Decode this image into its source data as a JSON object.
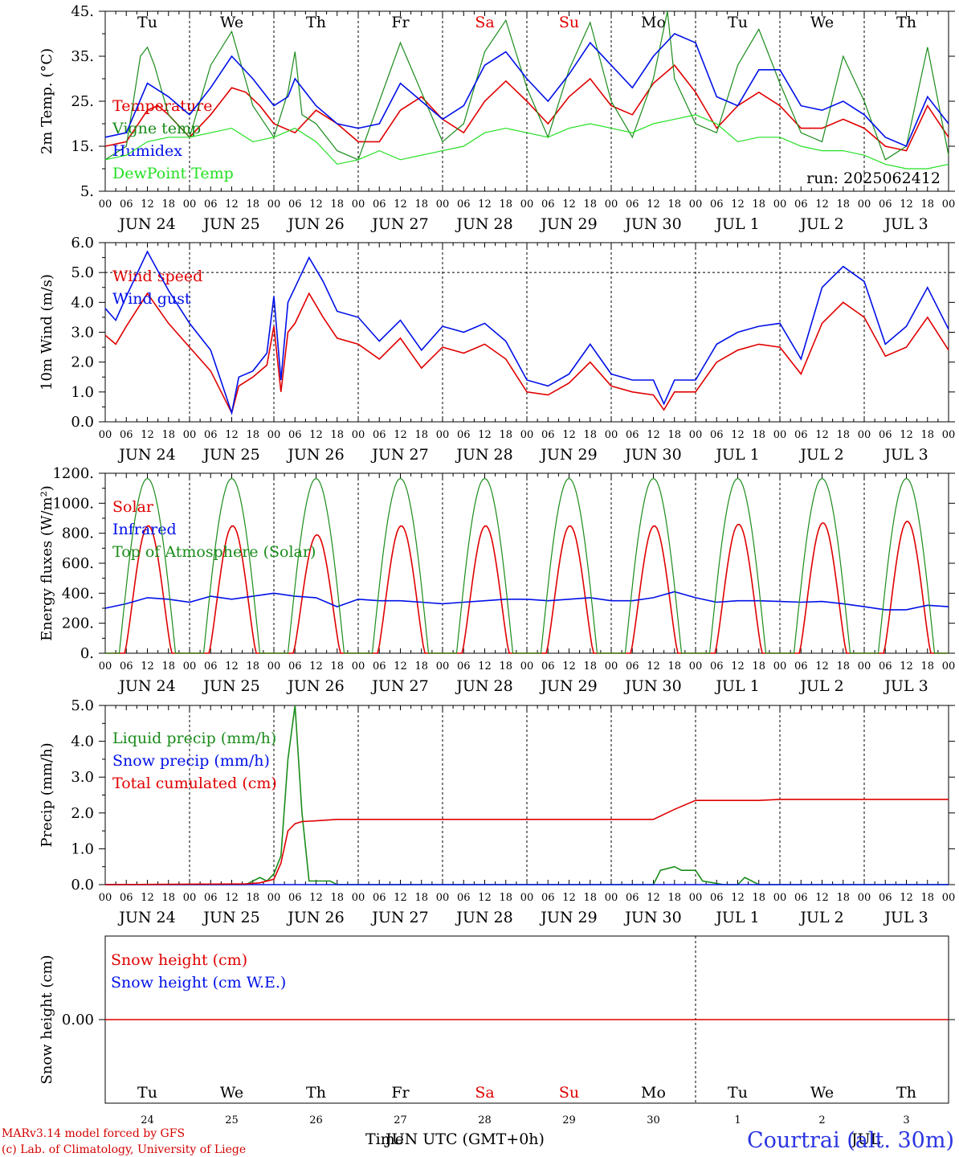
{
  "colors": {
    "red": "#e00000",
    "blue": "#0010e8",
    "darkgreen": "#1a8c1a",
    "lightgreen": "#22e022",
    "weekend": "#e00000",
    "location": "#2b35e0"
  },
  "days": {
    "weekday_labels": [
      "Tu",
      "We",
      "Th",
      "Fr",
      "Sa",
      "Su",
      "Mo",
      "Tu",
      "We",
      "Th"
    ],
    "weekend_index": [
      4,
      5
    ],
    "date_labels": [
      "JUN 24",
      "JUN 25",
      "JUN 26",
      "JUN 27",
      "JUN 28",
      "JUN 29",
      "JUN 30",
      "JUL  1",
      "JUL  2",
      "JUL  3"
    ],
    "hour_labels": [
      "00",
      "06",
      "12",
      "18"
    ],
    "end_hour_label": "00",
    "bottom_day_numbers": [
      "24",
      "25",
      "26",
      "27",
      "28",
      "29",
      "30",
      "1",
      "2",
      "3"
    ]
  },
  "chart_data": [
    {
      "type": "line",
      "ylabel": "2m Temp. (°C)",
      "ylim": [
        5,
        45
      ],
      "yticks": [
        "5.",
        "15.",
        "25.",
        "35.",
        "45."
      ],
      "x_unit": "hours from 2025-06-24 00 UTC",
      "annotation": "run: 2025062412",
      "series": [
        {
          "name": "Temperature",
          "color": "red",
          "x": [
            0,
            6,
            12,
            15,
            18,
            24,
            30,
            36,
            40,
            44,
            48,
            54,
            60,
            66,
            72,
            78,
            84,
            90,
            96,
            102,
            108,
            114,
            120,
            126,
            132,
            138,
            144,
            150,
            156,
            162,
            168,
            174,
            180,
            186,
            192,
            198,
            204,
            210,
            216,
            222,
            228,
            234,
            240
          ],
          "y": [
            15,
            16,
            23,
            24,
            22,
            17,
            22,
            28,
            27,
            24,
            20,
            18,
            23,
            20,
            16,
            16,
            23,
            26,
            21,
            18,
            25,
            29.5,
            25,
            20,
            26,
            30,
            24,
            22,
            29,
            33,
            27,
            19,
            24,
            27,
            24,
            19,
            19,
            21,
            19,
            15,
            14,
            24,
            17
          ]
        },
        {
          "name": "Vigne temp",
          "color": "darkgreen",
          "x": [
            0,
            6,
            10,
            12,
            14,
            18,
            24,
            30,
            36,
            42,
            48,
            52,
            54,
            56,
            60,
            66,
            72,
            78,
            84,
            90,
            96,
            102,
            108,
            114,
            120,
            126,
            132,
            138,
            144,
            150,
            156,
            160,
            162,
            168,
            174,
            180,
            186,
            192,
            198,
            204,
            210,
            216,
            222,
            228,
            234,
            240
          ],
          "y": [
            12,
            15,
            35,
            37,
            33,
            22,
            17,
            33,
            40.5,
            24,
            17,
            27,
            36,
            22,
            20,
            14,
            12,
            25,
            38,
            27,
            16,
            20,
            36,
            43,
            28,
            17,
            32,
            42.5,
            25,
            17,
            30,
            45,
            30,
            20,
            18,
            33,
            41,
            29,
            18,
            16,
            35,
            25,
            12,
            15,
            37,
            13
          ]
        },
        {
          "name": "Humidex",
          "color": "blue",
          "x": [
            0,
            6,
            12,
            18,
            24,
            30,
            36,
            42,
            48,
            52,
            54,
            60,
            66,
            72,
            78,
            84,
            90,
            96,
            102,
            108,
            114,
            120,
            126,
            132,
            138,
            144,
            150,
            156,
            162,
            168,
            174,
            180,
            186,
            192,
            198,
            204,
            210,
            216,
            222,
            228,
            234,
            240
          ],
          "y": [
            17,
            18,
            29,
            26,
            22,
            28,
            35,
            30,
            24,
            26,
            30,
            24,
            20,
            19,
            20,
            29,
            25,
            21,
            24,
            33,
            36,
            30,
            25,
            31,
            38,
            33,
            28,
            35,
            40,
            38,
            26,
            24,
            32,
            32,
            24,
            23,
            25,
            22,
            17,
            15,
            26,
            20
          ]
        },
        {
          "name": "DewPoint Temp",
          "color": "lightgreen",
          "x": [
            0,
            6,
            12,
            18,
            24,
            30,
            36,
            42,
            48,
            54,
            60,
            66,
            72,
            78,
            84,
            90,
            96,
            102,
            108,
            114,
            120,
            126,
            132,
            138,
            144,
            150,
            156,
            162,
            168,
            174,
            180,
            186,
            192,
            198,
            204,
            210,
            216,
            222,
            228,
            234,
            240
          ],
          "y": [
            12,
            13,
            16,
            17,
            17,
            18,
            19,
            16,
            17,
            19,
            16,
            11,
            12,
            14,
            12,
            13,
            14,
            15,
            18,
            19,
            18,
            17,
            19,
            20,
            19,
            18,
            20,
            21,
            22,
            20,
            16,
            17,
            17,
            15,
            14,
            14,
            13,
            11,
            10,
            10,
            11
          ]
        }
      ]
    },
    {
      "type": "line",
      "ylabel": "10m Wind (m/s)",
      "ylim": [
        0,
        6
      ],
      "yticks": [
        "0.0",
        "1.0",
        "2.0",
        "3.0",
        "4.0",
        "5.0",
        "6.0"
      ],
      "x_unit": "hours from 2025-06-24 00 UTC",
      "series": [
        {
          "name": "Wind speed",
          "color": "red",
          "x": [
            0,
            3,
            6,
            12,
            18,
            24,
            30,
            36,
            38,
            42,
            46,
            48,
            50,
            52,
            54,
            58,
            62,
            66,
            72,
            78,
            84,
            90,
            96,
            102,
            108,
            114,
            120,
            126,
            132,
            138,
            144,
            150,
            156,
            159,
            162,
            168,
            174,
            180,
            186,
            192,
            198,
            204,
            210,
            216,
            222,
            228,
            234,
            240
          ],
          "y": [
            2.9,
            2.6,
            3.2,
            4.3,
            3.3,
            2.5,
            1.7,
            0.3,
            1.2,
            1.5,
            1.9,
            3.2,
            1.0,
            3.0,
            3.3,
            4.3,
            3.5,
            2.8,
            2.6,
            2.1,
            2.8,
            1.8,
            2.5,
            2.3,
            2.6,
            2.1,
            1.0,
            0.9,
            1.3,
            2.0,
            1.2,
            1.0,
            0.9,
            0.4,
            1.0,
            1.0,
            2.0,
            2.4,
            2.6,
            2.5,
            1.6,
            3.3,
            4.0,
            3.5,
            2.2,
            2.5,
            3.5,
            2.4
          ]
        },
        {
          "name": "Wind gust",
          "color": "blue",
          "x": [
            0,
            3,
            6,
            12,
            18,
            24,
            30,
            36,
            38,
            42,
            46,
            48,
            50,
            52,
            54,
            58,
            62,
            66,
            72,
            78,
            84,
            90,
            96,
            102,
            108,
            114,
            120,
            126,
            132,
            138,
            144,
            150,
            156,
            159,
            162,
            168,
            174,
            180,
            186,
            192,
            198,
            204,
            210,
            216,
            222,
            228,
            234,
            240
          ],
          "y": [
            3.8,
            3.4,
            4.2,
            5.7,
            4.4,
            3.3,
            2.4,
            0.3,
            1.5,
            1.7,
            2.3,
            4.2,
            1.4,
            4.0,
            4.5,
            5.5,
            4.7,
            3.7,
            3.5,
            2.7,
            3.4,
            2.4,
            3.2,
            3.0,
            3.3,
            2.7,
            1.4,
            1.2,
            1.6,
            2.6,
            1.6,
            1.4,
            1.4,
            0.6,
            1.4,
            1.4,
            2.6,
            3.0,
            3.2,
            3.3,
            2.1,
            4.5,
            5.2,
            4.7,
            2.6,
            3.2,
            4.5,
            3.1
          ]
        }
      ]
    },
    {
      "type": "line",
      "ylabel": "Energy fluxes (W/m²)",
      "ylim": [
        0,
        1200
      ],
      "yticks": [
        "0.",
        "200.",
        "400.",
        "600.",
        "800.",
        "1000.",
        "1200."
      ],
      "x_unit": "hours from 2025-06-24 00 UTC",
      "solar_peaks": [
        850,
        850,
        790,
        850,
        850,
        850,
        850,
        860,
        870,
        880
      ],
      "toa_peak": 1165,
      "sunrise_hour": 4,
      "sunset_hour": 20,
      "series": [
        {
          "name": "Solar",
          "color": "red"
        },
        {
          "name": "Infrared",
          "color": "blue",
          "x": [
            0,
            6,
            12,
            18,
            24,
            30,
            36,
            42,
            48,
            54,
            60,
            66,
            72,
            78,
            84,
            90,
            96,
            102,
            108,
            114,
            120,
            126,
            132,
            138,
            144,
            150,
            156,
            162,
            168,
            174,
            180,
            186,
            192,
            198,
            204,
            210,
            216,
            222,
            228,
            234,
            240
          ],
          "y": [
            300,
            330,
            370,
            360,
            340,
            380,
            360,
            380,
            400,
            380,
            370,
            310,
            360,
            350,
            350,
            340,
            330,
            340,
            350,
            360,
            360,
            350,
            360,
            370,
            350,
            350,
            370,
            410,
            370,
            340,
            350,
            350,
            345,
            340,
            345,
            330,
            310,
            290,
            290,
            320,
            310
          ]
        },
        {
          "name": "Top of Atmosphere (Solar)",
          "color": "darkgreen"
        }
      ]
    },
    {
      "type": "line",
      "ylabel": "Precip (mm/h)",
      "ylim": [
        0,
        5
      ],
      "yticks": [
        "0.0",
        "1.0",
        "2.0",
        "3.0",
        "4.0",
        "5.0"
      ],
      "x_unit": "hours from 2025-06-24 00 UTC",
      "series": [
        {
          "name": "Liquid precip (mm/h)",
          "color": "darkgreen",
          "x": [
            0,
            40,
            44,
            46,
            48,
            50,
            52,
            54,
            56,
            58,
            60,
            64,
            66,
            72,
            156,
            158,
            162,
            164,
            168,
            170,
            176,
            180,
            182,
            184,
            186,
            240
          ],
          "y": [
            0,
            0,
            0.2,
            0.1,
            0.3,
            0.8,
            3.5,
            5.0,
            2.0,
            0.1,
            0.1,
            0.1,
            0,
            0,
            0,
            0.4,
            0.5,
            0.4,
            0.4,
            0.1,
            0,
            0,
            0.2,
            0.1,
            0,
            0
          ]
        },
        {
          "name": "Snow precip (mm/h)",
          "color": "blue",
          "x": [
            0,
            240
          ],
          "y": [
            0,
            0
          ]
        },
        {
          "name": "Total cumulated (cm)",
          "color": "red",
          "x": [
            0,
            40,
            44,
            48,
            50,
            52,
            54,
            56,
            60,
            66,
            72,
            108,
            144,
            150,
            156,
            162,
            168,
            174,
            180,
            186,
            192,
            210,
            240
          ],
          "y": [
            0,
            0.02,
            0.05,
            0.15,
            0.6,
            1.5,
            1.7,
            1.76,
            1.78,
            1.82,
            1.82,
            1.82,
            1.82,
            1.82,
            1.82,
            2.1,
            2.35,
            2.35,
            2.35,
            2.35,
            2.38,
            2.38,
            2.38
          ]
        }
      ]
    },
    {
      "type": "line",
      "ylabel": "Snow height (cm)",
      "ylim": [
        -1,
        1
      ],
      "yticks": [
        "0.00"
      ],
      "x_unit": "hours from 2025-06-24 00 UTC",
      "series": [
        {
          "name": "Snow height (cm)",
          "color": "red",
          "x": [
            0,
            240
          ],
          "y": [
            0,
            0
          ]
        },
        {
          "name": "Snow height (cm W.E.)",
          "color": "blue"
        }
      ]
    }
  ],
  "footer": {
    "model": "MARv3.14 model forced by GFS",
    "lab": "(c) Lab. of Climatology, University of Liege",
    "time_label": "Time",
    "axis_unit": "JUN UTC (GMT+0h)",
    "month_end": "JUL",
    "location": "Courtrai (alt. 30m)"
  }
}
